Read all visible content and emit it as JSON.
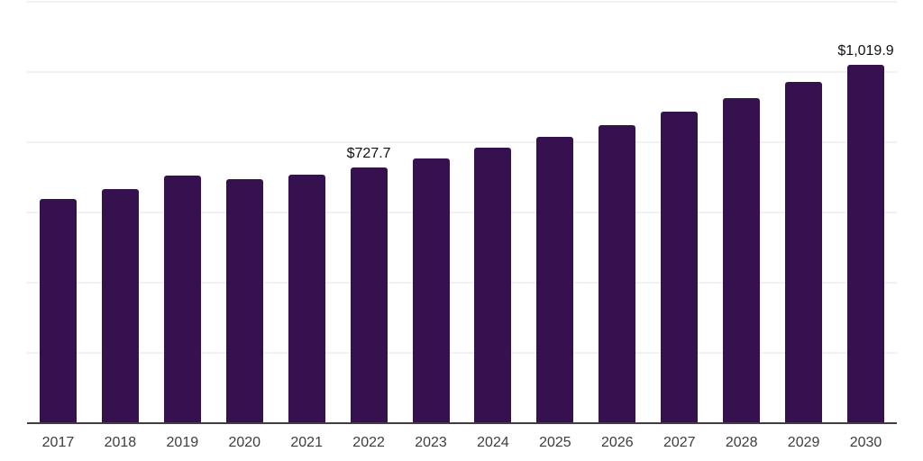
{
  "chart_data": {
    "type": "bar",
    "title": "",
    "categories": [
      "2017",
      "2018",
      "2019",
      "2020",
      "2021",
      "2022",
      "2023",
      "2024",
      "2025",
      "2026",
      "2027",
      "2028",
      "2029",
      "2030"
    ],
    "values": [
      638,
      667,
      705,
      695,
      708,
      727.7,
      753,
      784,
      815,
      848,
      886,
      925,
      971,
      1019.9
    ],
    "point_labels": [
      "",
      "",
      "",
      "",
      "",
      "$727.7",
      "",
      "",
      "",
      "",
      "",
      "",
      "",
      "$1,019.9"
    ],
    "xlabel": "",
    "ylabel": "",
    "ylim": [
      0,
      1200
    ],
    "gridline_interval": 200,
    "grid": true,
    "legend": "none",
    "colors": {
      "bar": "#351150",
      "gridline": "#f1f1f4",
      "axis_line": "#3f3f3f",
      "x_tick_label": "#3d3d3d",
      "value_label": "#111111",
      "background": "#ffffff"
    }
  }
}
